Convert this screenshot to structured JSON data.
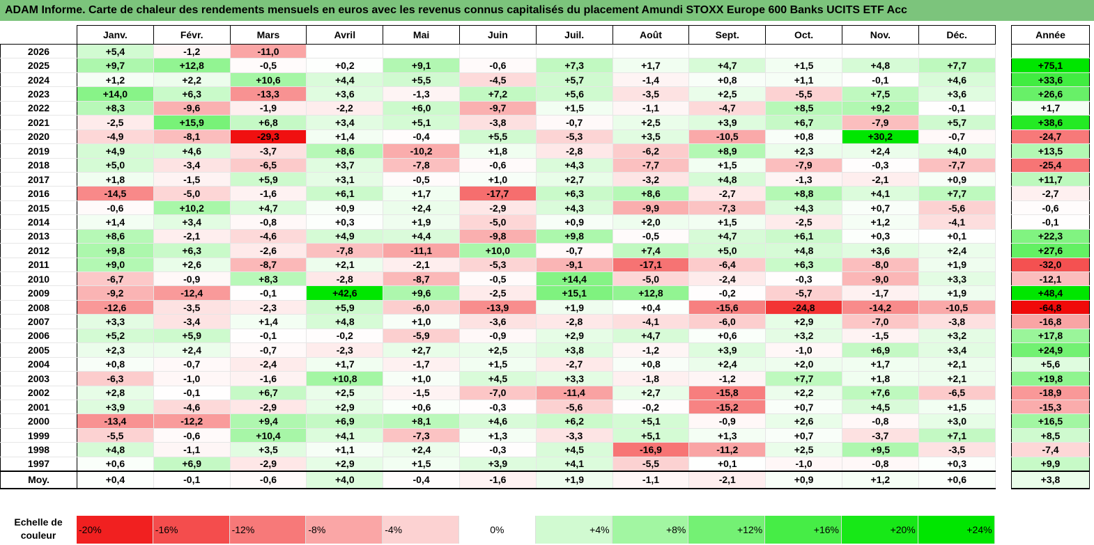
{
  "title": "ADAM Informe. Carte de chaleur des rendements mensuels en euros avec les revenus connus capitalisés du placement Amundi STOXX Europe 600 Banks UCITS ETF Acc",
  "chart_data": {
    "type": "heatmap",
    "title": "ADAM Informe. Carte de chaleur des rendements mensuels en euros avec les revenus connus capitalisés du placement Amundi STOXX Europe 600 Banks UCITS ETF Acc",
    "columns": [
      "Janv.",
      "Févr.",
      "Mars",
      "Avril",
      "Mai",
      "Juin",
      "Juil.",
      "Août",
      "Sept.",
      "Oct.",
      "Nov.",
      "Déc."
    ],
    "year_header": "Année",
    "rows": [
      {
        "year": "2026",
        "values": [
          "+5,4",
          "-1,2",
          "-11,0",
          "",
          "",
          "",
          "",
          "",
          "",
          "",
          "",
          ""
        ],
        "annual": ""
      },
      {
        "year": "2025",
        "values": [
          "+9,7",
          "+12,8",
          "-0,5",
          "+0,2",
          "+9,1",
          "-0,6",
          "+7,3",
          "+1,7",
          "+4,7",
          "+1,5",
          "+4,8",
          "+7,7"
        ],
        "annual": "+75,1"
      },
      {
        "year": "2024",
        "values": [
          "+1,2",
          "+2,2",
          "+10,6",
          "+4,4",
          "+5,5",
          "-4,5",
          "+5,7",
          "-1,4",
          "+0,8",
          "+1,1",
          "-0,1",
          "+4,6"
        ],
        "annual": "+33,6"
      },
      {
        "year": "2023",
        "values": [
          "+14,0",
          "+6,3",
          "-13,3",
          "+3,6",
          "-1,3",
          "+7,2",
          "+5,6",
          "-3,5",
          "+2,5",
          "-5,5",
          "+7,5",
          "+3,6"
        ],
        "annual": "+26,6"
      },
      {
        "year": "2022",
        "values": [
          "+8,3",
          "-9,6",
          "-1,9",
          "-2,2",
          "+6,0",
          "-9,7",
          "+1,5",
          "-1,1",
          "-4,7",
          "+8,5",
          "+9,2",
          "-0,1"
        ],
        "annual": "+1,7"
      },
      {
        "year": "2021",
        "values": [
          "-2,5",
          "+15,9",
          "+6,8",
          "+3,4",
          "+5,1",
          "-3,8",
          "-0,7",
          "+2,5",
          "+3,9",
          "+6,7",
          "-7,9",
          "+5,7"
        ],
        "annual": "+38,6"
      },
      {
        "year": "2020",
        "values": [
          "-4,9",
          "-8,1",
          "-29,3",
          "+1,4",
          "-0,4",
          "+5,5",
          "-5,3",
          "+3,5",
          "-10,5",
          "+0,8",
          "+30,2",
          "-0,7"
        ],
        "annual": "-24,7"
      },
      {
        "year": "2019",
        "values": [
          "+4,9",
          "+4,6",
          "-3,7",
          "+8,6",
          "-10,2",
          "+1,8",
          "-2,8",
          "-6,2",
          "+8,9",
          "+2,3",
          "+2,4",
          "+4,0"
        ],
        "annual": "+13,5"
      },
      {
        "year": "2018",
        "values": [
          "+5,0",
          "-3,4",
          "-6,5",
          "+3,7",
          "-7,8",
          "-0,6",
          "+4,3",
          "-7,7",
          "+1,5",
          "-7,9",
          "-0,3",
          "-7,7"
        ],
        "annual": "-25,4"
      },
      {
        "year": "2017",
        "values": [
          "+1,8",
          "-1,5",
          "+5,9",
          "+3,1",
          "-0,5",
          "+1,0",
          "+2,7",
          "-3,2",
          "+4,8",
          "-1,3",
          "-2,1",
          "+0,9"
        ],
        "annual": "+11,7"
      },
      {
        "year": "2016",
        "values": [
          "-14,5",
          "-5,0",
          "-1,6",
          "+6,1",
          "+1,7",
          "-17,7",
          "+6,3",
          "+8,6",
          "-2,7",
          "+8,8",
          "+4,1",
          "+7,7"
        ],
        "annual": "-2,7"
      },
      {
        "year": "2015",
        "values": [
          "-0,6",
          "+10,2",
          "+4,7",
          "+0,9",
          "+2,4",
          "-2,9",
          "+4,3",
          "-9,9",
          "-7,3",
          "+4,3",
          "+0,7",
          "-5,6"
        ],
        "annual": "-0,6"
      },
      {
        "year": "2014",
        "values": [
          "+1,4",
          "+3,4",
          "-0,8",
          "+0,3",
          "+1,9",
          "-5,0",
          "+0,9",
          "+2,0",
          "+1,5",
          "-2,5",
          "+1,2",
          "-4,1"
        ],
        "annual": "-0,1"
      },
      {
        "year": "2013",
        "values": [
          "+8,6",
          "-2,1",
          "-4,6",
          "+4,9",
          "+4,4",
          "-9,8",
          "+9,8",
          "-0,5",
          "+4,7",
          "+6,1",
          "+0,3",
          "+0,1"
        ],
        "annual": "+22,3"
      },
      {
        "year": "2012",
        "values": [
          "+9,8",
          "+6,3",
          "-2,6",
          "-7,8",
          "-11,1",
          "+10,0",
          "-0,7",
          "+7,4",
          "+5,0",
          "+4,8",
          "+3,6",
          "+2,4"
        ],
        "annual": "+27,6"
      },
      {
        "year": "2011",
        "values": [
          "+9,0",
          "+2,6",
          "-8,7",
          "+2,1",
          "-2,1",
          "-5,3",
          "-9,1",
          "-17,1",
          "-6,4",
          "+6,3",
          "-8,0",
          "+1,9"
        ],
        "annual": "-32,0"
      },
      {
        "year": "2010",
        "values": [
          "-6,7",
          "-0,9",
          "+8,3",
          "-2,8",
          "-8,7",
          "-0,5",
          "+14,4",
          "-5,0",
          "-2,4",
          "-0,3",
          "-9,0",
          "+3,3"
        ],
        "annual": "-12,1"
      },
      {
        "year": "2009",
        "values": [
          "-9,2",
          "-12,4",
          "-0,1",
          "+42,6",
          "+9,6",
          "-2,5",
          "+15,1",
          "+12,8",
          "-0,2",
          "-5,7",
          "-1,7",
          "+1,9"
        ],
        "annual": "+48,4"
      },
      {
        "year": "2008",
        "values": [
          "-12,6",
          "-3,5",
          "-2,3",
          "+5,9",
          "-6,0",
          "-13,9",
          "+1,9",
          "+0,4",
          "-15,6",
          "-24,8",
          "-14,2",
          "-10,5"
        ],
        "annual": "-64,8"
      },
      {
        "year": "2007",
        "values": [
          "+3,3",
          "-3,4",
          "+1,4",
          "+4,8",
          "+1,0",
          "-3,6",
          "-2,8",
          "-4,1",
          "-6,0",
          "+2,9",
          "-7,0",
          "-3,8"
        ],
        "annual": "-16,8"
      },
      {
        "year": "2006",
        "values": [
          "+5,2",
          "+5,9",
          "-0,1",
          "-0,2",
          "-5,9",
          "-0,9",
          "+2,9",
          "+4,7",
          "+0,6",
          "+3,2",
          "-1,5",
          "+3,2"
        ],
        "annual": "+17,8"
      },
      {
        "year": "2005",
        "values": [
          "+2,3",
          "+2,4",
          "-0,7",
          "-2,3",
          "+2,7",
          "+2,5",
          "+3,8",
          "-1,2",
          "+3,9",
          "-1,0",
          "+6,9",
          "+3,4"
        ],
        "annual": "+24,9"
      },
      {
        "year": "2004",
        "values": [
          "+0,8",
          "-0,7",
          "-2,4",
          "+1,7",
          "-1,7",
          "+1,5",
          "-2,7",
          "+0,8",
          "+2,4",
          "+2,0",
          "+1,7",
          "+2,1"
        ],
        "annual": "+5,6"
      },
      {
        "year": "2003",
        "values": [
          "-6,3",
          "-1,0",
          "-1,6",
          "+10,8",
          "+1,0",
          "+4,5",
          "+3,3",
          "-1,8",
          "-1,2",
          "+7,7",
          "+1,8",
          "+2,1"
        ],
        "annual": "+19,8"
      },
      {
        "year": "2002",
        "values": [
          "+2,8",
          "-0,1",
          "+6,7",
          "+2,5",
          "-1,5",
          "-7,0",
          "-11,4",
          "+2,7",
          "-15,8",
          "+2,2",
          "+7,6",
          "-6,5"
        ],
        "annual": "-18,9"
      },
      {
        "year": "2001",
        "values": [
          "+3,9",
          "-4,6",
          "-2,9",
          "+2,9",
          "+0,6",
          "-0,3",
          "-5,6",
          "-0,2",
          "-15,2",
          "+0,7",
          "+4,5",
          "+1,5"
        ],
        "annual": "-15,3"
      },
      {
        "year": "2000",
        "values": [
          "-13,4",
          "-12,2",
          "+9,4",
          "+6,9",
          "+8,1",
          "+4,6",
          "+6,2",
          "+5,1",
          "-0,9",
          "+2,6",
          "-0,8",
          "+3,0"
        ],
        "annual": "+16,5"
      },
      {
        "year": "1999",
        "values": [
          "-5,5",
          "-0,6",
          "+10,4",
          "+4,1",
          "-7,3",
          "+1,3",
          "-3,3",
          "+5,1",
          "+1,3",
          "+0,7",
          "-3,7",
          "+7,1"
        ],
        "annual": "+8,5"
      },
      {
        "year": "1998",
        "values": [
          "+4,8",
          "-1,1",
          "+3,5",
          "+1,1",
          "+2,4",
          "-0,3",
          "+4,5",
          "-16,9",
          "-11,2",
          "+2,5",
          "+9,5",
          "-3,5"
        ],
        "annual": "-7,4"
      },
      {
        "year": "1997",
        "values": [
          "+0,6",
          "+6,9",
          "-2,9",
          "+2,9",
          "+1,5",
          "+3,9",
          "+4,1",
          "-5,5",
          "+0,1",
          "-1,0",
          "-0,8",
          "+0,3"
        ],
        "annual": "+9,9"
      }
    ],
    "average": {
      "label": "Moy.",
      "values": [
        "+0,4",
        "-0,1",
        "-0,6",
        "+4,0",
        "-0,4",
        "-1,6",
        "+1,9",
        "-1,1",
        "-2,1",
        "+0,9",
        "+1,2",
        "+0,6"
      ],
      "annual": "+3,8"
    },
    "scale": {
      "label": "Echelle de couleur",
      "stops": [
        "-20%",
        "-16%",
        "-12%",
        "-8%",
        "-4%",
        "0%",
        "+4%",
        "+8%",
        "+12%",
        "+16%",
        "+20%",
        "+24%"
      ]
    }
  }
}
